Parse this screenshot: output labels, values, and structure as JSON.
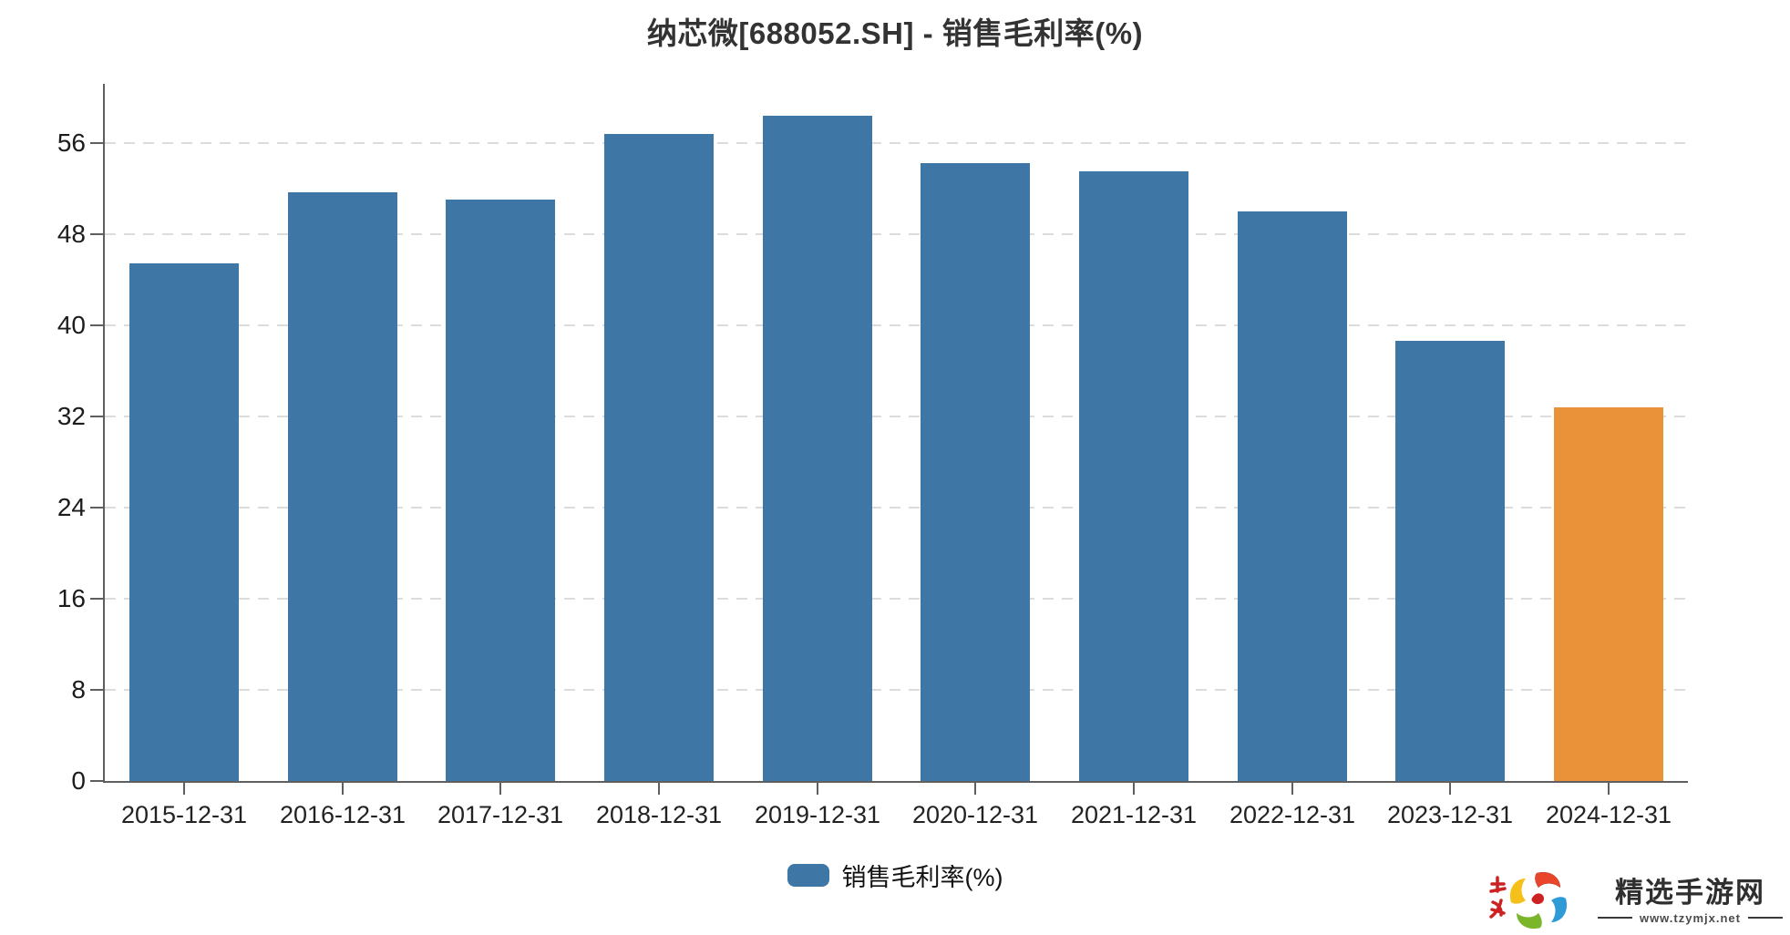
{
  "title": "纳芯微[688052.SH] - 销售毛利率(%)",
  "chart_data": {
    "type": "bar",
    "title": "纳芯微[688052.SH] - 销售毛利率(%)",
    "categories": [
      "2015-12-31",
      "2016-12-31",
      "2017-12-31",
      "2018-12-31",
      "2019-12-31",
      "2020-12-31",
      "2021-12-31",
      "2022-12-31",
      "2023-12-31",
      "2024-12-31"
    ],
    "series": [
      {
        "name": "销售毛利率(%)",
        "values": [
          45.4,
          51.7,
          51.0,
          56.8,
          58.4,
          54.2,
          53.5,
          50.0,
          38.6,
          32.8
        ]
      }
    ],
    "xlabel": "",
    "ylabel": "",
    "ylim": [
      0,
      61.2
    ],
    "yticks": [
      0,
      8,
      16,
      24,
      32,
      40,
      48,
      56
    ],
    "grid": "horizontal-dashed",
    "legend_position": "bottom-center",
    "bar_color_default": "#3e76a5",
    "bar_color_last": "#e9923a"
  },
  "legend": {
    "label": "销售毛利率(%)",
    "swatch_color": "#3e76a5"
  },
  "watermark": {
    "site_name": "精选手游网",
    "site_url": "www.tzymjx.net",
    "logo_icon": "pinwheel-swirl-icon",
    "logo_colors": [
      "#e8452c",
      "#2e9bd6",
      "#7ab52a",
      "#f6c01a",
      "#cc2222"
    ]
  },
  "colors": {
    "background": "#ffffff",
    "axis": "#5f5f5f",
    "gridline": "#dcdcdc",
    "title_text": "#333333",
    "tick_text": "#1c1c1c"
  }
}
